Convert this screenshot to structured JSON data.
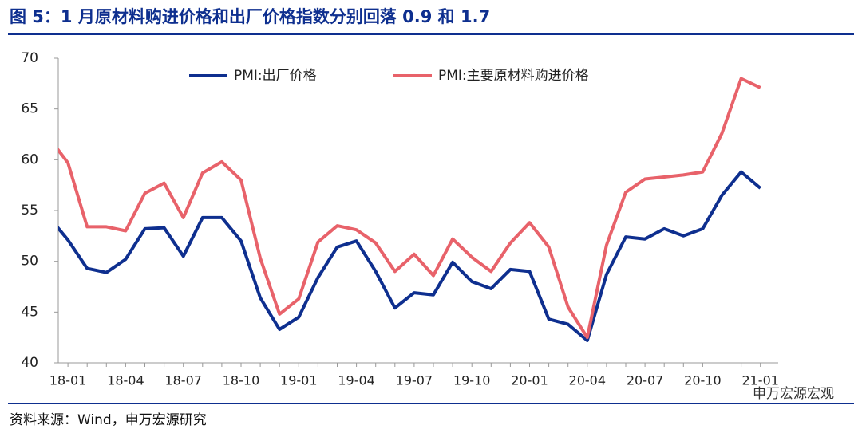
{
  "title": "图 5：1 月原材料购进价格和出厂价格指数分别回落 0.9 和 1.7",
  "source": "资料来源：Wind，申万宏源研究",
  "watermark": "申万宏源宏观",
  "chart_data": {
    "type": "line",
    "categories": [
      null,
      "18-01",
      null,
      null,
      "18-04",
      null,
      null,
      "18-07",
      null,
      null,
      "18-10",
      null,
      null,
      "19-01",
      null,
      null,
      "19-04",
      null,
      null,
      "19-07",
      null,
      null,
      "19-10",
      null,
      null,
      "20-01",
      null,
      null,
      "20-04",
      null,
      null,
      "20-07",
      null,
      null,
      "20-10",
      null,
      null,
      "21-01"
    ],
    "series": [
      {
        "name": "PMI:出厂价格",
        "color": "#0e2f8f",
        "values": [
          54.4,
          52.1,
          49.3,
          48.9,
          50.2,
          53.2,
          53.3,
          50.5,
          54.3,
          54.3,
          52.0,
          46.4,
          43.3,
          44.5,
          48.4,
          51.4,
          52.0,
          49.0,
          45.4,
          46.9,
          46.7,
          49.9,
          48.0,
          47.3,
          49.2,
          49.0,
          44.3,
          43.8,
          42.2,
          48.7,
          52.4,
          52.2,
          53.2,
          52.5,
          53.2,
          56.5,
          58.8,
          57.2
        ]
      },
      {
        "name": "PMI:主要原材料购进价格",
        "color": "#e8626a",
        "values": [
          62.2,
          59.7,
          53.4,
          53.4,
          53.0,
          56.7,
          57.7,
          54.3,
          58.7,
          59.8,
          58.0,
          50.3,
          44.8,
          46.3,
          51.9,
          53.5,
          53.1,
          51.8,
          49.0,
          50.7,
          48.6,
          52.2,
          50.4,
          49.0,
          51.8,
          53.8,
          51.4,
          45.5,
          42.5,
          51.6,
          56.8,
          58.1,
          58.3,
          58.5,
          58.8,
          62.6,
          68.0,
          67.1
        ]
      }
    ],
    "ylim": [
      40,
      70
    ],
    "yticks": [
      40,
      45,
      50,
      55,
      60,
      65,
      70
    ],
    "legend": "top"
  }
}
